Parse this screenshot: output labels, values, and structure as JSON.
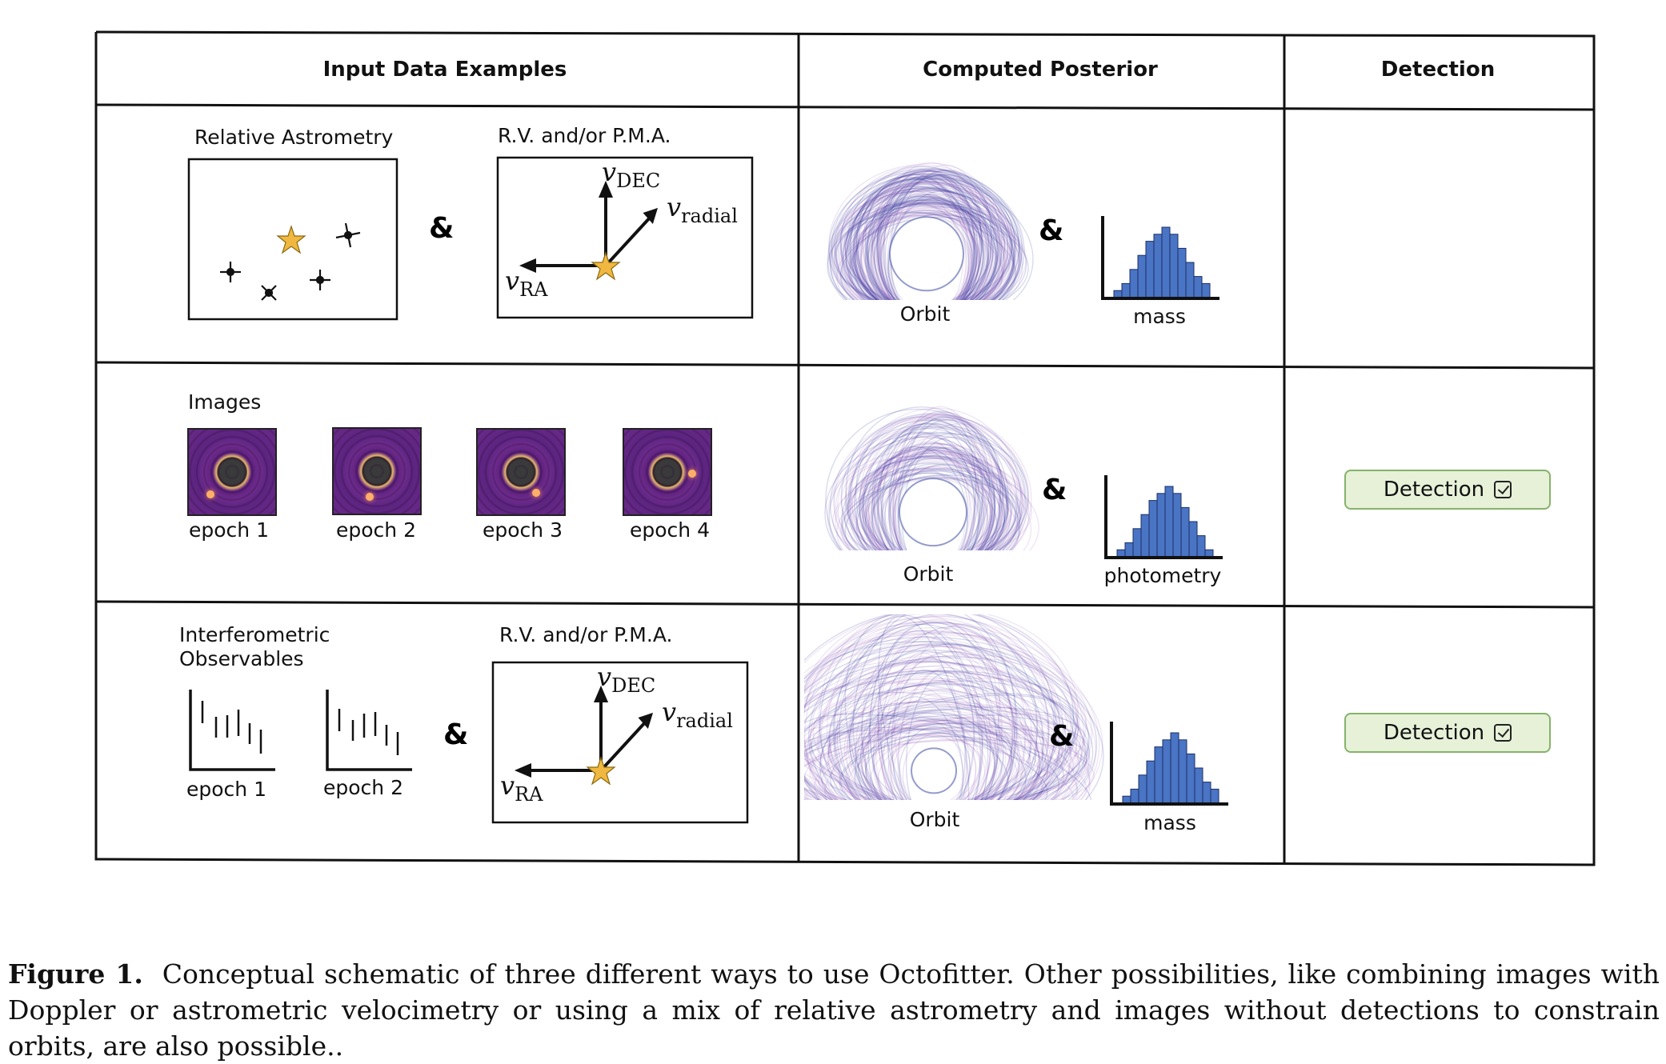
{
  "table": {
    "headers": [
      "Input Data Examples",
      "Computed Posterior",
      "Detection"
    ]
  },
  "row1": {
    "astrometry_label": "Relative Astrometry",
    "rv_label": "R.V. and/or P.M.A.",
    "amp": "&",
    "v_dec": "v",
    "v_dec_sub": "DEC",
    "v_radial": "v",
    "v_radial_sub": "radial",
    "v_ra": "v",
    "v_ra_sub": "RA",
    "orbit_label": "Orbit",
    "hist_label": "mass",
    "hist_values": [
      1,
      2,
      4,
      6,
      8,
      9,
      10,
      9,
      7,
      5,
      3,
      2
    ],
    "detection": ""
  },
  "row2": {
    "images_label": "Images",
    "epochs": [
      "epoch 1",
      "epoch 2",
      "epoch 3",
      "epoch 4"
    ],
    "orbit_label": "Orbit",
    "hist_label": "photometry",
    "hist_values": [
      1,
      2,
      4,
      6,
      8,
      9,
      10,
      9,
      7,
      5,
      3,
      1
    ],
    "detection_label": "Detection"
  },
  "row3": {
    "interf_label_1": "Interferometric",
    "interf_label_2": "Observables",
    "rv_label": "R.V. and/or P.M.A.",
    "epochs": [
      "epoch 1",
      "epoch 2"
    ],
    "orbit_label": "Orbit",
    "hist_label": "mass",
    "hist_values": [
      1,
      2,
      4,
      6,
      8,
      9,
      10,
      9,
      7,
      5,
      3,
      2
    ],
    "detection_label": "Detection"
  },
  "caption": {
    "label": "Figure 1.",
    "text": "Conceptual schematic of three different ways to use Octofitter. Other possibilities, like combining images with Doppler or astrometric velocimetry or using a mix of relative astrometry and images without detections to constrain orbits, are also possible.."
  },
  "colors": {
    "star": "#f0b840",
    "hist": "#4a74c4",
    "orbit_purple": "#7a3cb0",
    "orbit_blue": "#2a3a9a",
    "detection_bg": "#e6f1d8",
    "detection_border": "#86b26a"
  }
}
